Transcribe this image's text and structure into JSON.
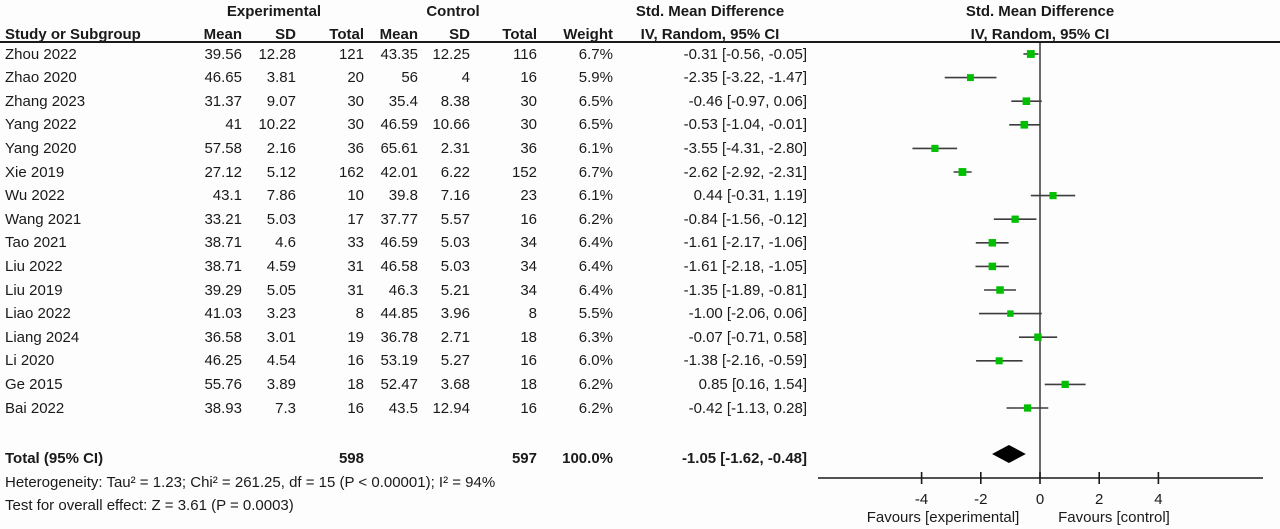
{
  "header": {
    "group_experimental": "Experimental",
    "group_control": "Control",
    "col_study": "Study or Subgroup",
    "col_mean": "Mean",
    "col_sd": "SD",
    "col_total": "Total",
    "col_weight": "Weight",
    "smd_title": "Std. Mean Difference",
    "smd_method": "IV, Random, 95% CI"
  },
  "chart_data": {
    "type": "forest",
    "effect_measure": "Std. Mean Difference",
    "model": "IV, Random, 95% CI",
    "axis": {
      "ticks": [
        -4,
        -2,
        0,
        2,
        4
      ],
      "xlim": [
        -7.5,
        7.5
      ],
      "label_left": "Favours [experimental]",
      "label_right": "Favours [control]"
    },
    "studies": [
      {
        "study": "Zhou 2022",
        "e_mean": "39.56",
        "e_sd": "12.28",
        "e_total": "121",
        "c_mean": "43.35",
        "c_sd": "12.25",
        "c_total": "116",
        "weight": "6.7%",
        "ci_text": "-0.31 [-0.56, -0.05]",
        "est": -0.31,
        "lo": -0.56,
        "hi": -0.05,
        "w": 6.7
      },
      {
        "study": "Zhao 2020",
        "e_mean": "46.65",
        "e_sd": "3.81",
        "e_total": "20",
        "c_mean": "56",
        "c_sd": "4",
        "c_total": "16",
        "weight": "5.9%",
        "ci_text": "-2.35 [-3.22, -1.47]",
        "est": -2.35,
        "lo": -3.22,
        "hi": -1.47,
        "w": 5.9
      },
      {
        "study": "Zhang 2023",
        "e_mean": "31.37",
        "e_sd": "9.07",
        "e_total": "30",
        "c_mean": "35.4",
        "c_sd": "8.38",
        "c_total": "30",
        "weight": "6.5%",
        "ci_text": "-0.46 [-0.97, 0.06]",
        "est": -0.46,
        "lo": -0.97,
        "hi": 0.06,
        "w": 6.5
      },
      {
        "study": "Yang 2022",
        "e_mean": "41",
        "e_sd": "10.22",
        "e_total": "30",
        "c_mean": "46.59",
        "c_sd": "10.66",
        "c_total": "30",
        "weight": "6.5%",
        "ci_text": "-0.53 [-1.04, -0.01]",
        "est": -0.53,
        "lo": -1.04,
        "hi": -0.01,
        "w": 6.5
      },
      {
        "study": "Yang 2020",
        "e_mean": "57.58",
        "e_sd": "2.16",
        "e_total": "36",
        "c_mean": "65.61",
        "c_sd": "2.31",
        "c_total": "36",
        "weight": "6.1%",
        "ci_text": "-3.55 [-4.31, -2.80]",
        "est": -3.55,
        "lo": -4.31,
        "hi": -2.8,
        "w": 6.1
      },
      {
        "study": "Xie 2019",
        "e_mean": "27.12",
        "e_sd": "5.12",
        "e_total": "162",
        "c_mean": "42.01",
        "c_sd": "6.22",
        "c_total": "152",
        "weight": "6.7%",
        "ci_text": "-2.62 [-2.92, -2.31]",
        "est": -2.62,
        "lo": -2.92,
        "hi": -2.31,
        "w": 6.7
      },
      {
        "study": "Wu 2022",
        "e_mean": "43.1",
        "e_sd": "7.86",
        "e_total": "10",
        "c_mean": "39.8",
        "c_sd": "7.16",
        "c_total": "23",
        "weight": "6.1%",
        "ci_text": "0.44 [-0.31, 1.19]",
        "est": 0.44,
        "lo": -0.31,
        "hi": 1.19,
        "w": 6.1
      },
      {
        "study": "Wang 2021",
        "e_mean": "33.21",
        "e_sd": "5.03",
        "e_total": "17",
        "c_mean": "37.77",
        "c_sd": "5.57",
        "c_total": "16",
        "weight": "6.2%",
        "ci_text": "-0.84 [-1.56, -0.12]",
        "est": -0.84,
        "lo": -1.56,
        "hi": -0.12,
        "w": 6.2
      },
      {
        "study": "Tao 2021",
        "e_mean": "38.71",
        "e_sd": "4.6",
        "e_total": "33",
        "c_mean": "46.59",
        "c_sd": "5.03",
        "c_total": "34",
        "weight": "6.4%",
        "ci_text": "-1.61 [-2.17, -1.06]",
        "est": -1.61,
        "lo": -2.17,
        "hi": -1.06,
        "w": 6.4
      },
      {
        "study": "Liu 2022",
        "e_mean": "38.71",
        "e_sd": "4.59",
        "e_total": "31",
        "c_mean": "46.58",
        "c_sd": "5.03",
        "c_total": "34",
        "weight": "6.4%",
        "ci_text": "-1.61 [-2.18, -1.05]",
        "est": -1.61,
        "lo": -2.18,
        "hi": -1.05,
        "w": 6.4
      },
      {
        "study": "Liu 2019",
        "e_mean": "39.29",
        "e_sd": "5.05",
        "e_total": "31",
        "c_mean": "46.3",
        "c_sd": "5.21",
        "c_total": "34",
        "weight": "6.4%",
        "ci_text": "-1.35 [-1.89, -0.81]",
        "est": -1.35,
        "lo": -1.89,
        "hi": -0.81,
        "w": 6.4
      },
      {
        "study": "Liao 2022",
        "e_mean": "41.03",
        "e_sd": "3.23",
        "e_total": "8",
        "c_mean": "44.85",
        "c_sd": "3.96",
        "c_total": "8",
        "weight": "5.5%",
        "ci_text": "-1.00 [-2.06, 0.06]",
        "est": -1.0,
        "lo": -2.06,
        "hi": 0.06,
        "w": 5.5
      },
      {
        "study": "Liang 2024",
        "e_mean": "36.58",
        "e_sd": "3.01",
        "e_total": "19",
        "c_mean": "36.78",
        "c_sd": "2.71",
        "c_total": "18",
        "weight": "6.3%",
        "ci_text": "-0.07 [-0.71, 0.58]",
        "est": -0.07,
        "lo": -0.71,
        "hi": 0.58,
        "w": 6.3
      },
      {
        "study": "Li 2020",
        "e_mean": "46.25",
        "e_sd": "4.54",
        "e_total": "16",
        "c_mean": "53.19",
        "c_sd": "5.27",
        "c_total": "16",
        "weight": "6.0%",
        "ci_text": "-1.38 [-2.16, -0.59]",
        "est": -1.38,
        "lo": -2.16,
        "hi": -0.59,
        "w": 6.0
      },
      {
        "study": "Ge 2015",
        "e_mean": "55.76",
        "e_sd": "3.89",
        "e_total": "18",
        "c_mean": "52.47",
        "c_sd": "3.68",
        "c_total": "18",
        "weight": "6.2%",
        "ci_text": "0.85 [0.16, 1.54]",
        "est": 0.85,
        "lo": 0.16,
        "hi": 1.54,
        "w": 6.2
      },
      {
        "study": "Bai 2022",
        "e_mean": "38.93",
        "e_sd": "7.3",
        "e_total": "16",
        "c_mean": "43.5",
        "c_sd": "12.94",
        "c_total": "16",
        "weight": "6.2%",
        "ci_text": "-0.42 [-1.13, 0.28]",
        "est": -0.42,
        "lo": -1.13,
        "hi": 0.28,
        "w": 6.2
      }
    ],
    "total": {
      "label": "Total (95% CI)",
      "e_total": "598",
      "c_total": "597",
      "weight": "100.0%",
      "ci_text": "-1.05 [-1.62, -0.48]",
      "est": -1.05,
      "lo": -1.62,
      "hi": -0.48
    },
    "heterogeneity": "Heterogeneity: Tau² = 1.23; Chi² = 261.25, df = 15 (P < 0.00001); I² = 94%",
    "overall_effect": "Test for overall effect: Z = 3.61 (P = 0.0003)"
  },
  "colors": {
    "marker_green": "#00bf00",
    "ci_line": "#3d3d3d",
    "diamond": "#000000",
    "text": "#1a1a1a",
    "rule": "#1a1a1a"
  }
}
